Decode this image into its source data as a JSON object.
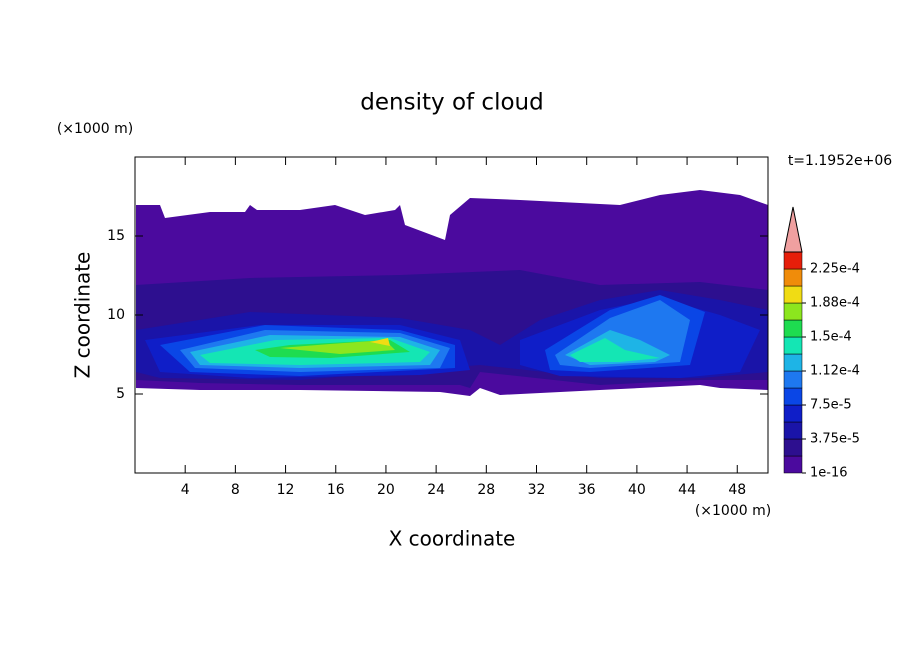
{
  "chart_data": {
    "type": "contour",
    "title": "density of cloud",
    "x_label": "X coordinate",
    "y_label": "Z coordinate",
    "x_unit": "(×1000 m)",
    "y_unit": "(×1000 m)",
    "time_label": "t=1.1952e+06",
    "xlim": [
      0,
      50.45
    ],
    "ylim": [
      0,
      20
    ],
    "xticks": [
      4,
      8,
      12,
      16,
      20,
      24,
      28,
      32,
      36,
      40,
      44,
      48
    ],
    "yticks": [
      5,
      10,
      15
    ],
    "levels": [
      1e-16,
      1.875e-05,
      3.75e-05,
      5.625e-05,
      7.5e-05,
      9.375e-05,
      0.0001125,
      0.00013125,
      0.00015,
      0.00016875,
      0.0001875,
      0.00020625,
      0.000225,
      0.00024375
    ],
    "colors": [
      "#4b0a9e",
      "#2d0f8f",
      "#1a14a8",
      "#0f1ec8",
      "#0a46e6",
      "#1e78f0",
      "#1eb4e6",
      "#14e6b4",
      "#1edc50",
      "#8ce61e",
      "#f0dc14",
      "#f08c0a",
      "#e61e0a"
    ],
    "over_color": "#f0a0a0",
    "colorbar_ticks": [
      {
        "value": 1e-16,
        "label": "1e-16"
      },
      {
        "value": 3.75e-05,
        "label": "3.75e-5"
      },
      {
        "value": 7.5e-05,
        "label": "7.5e-5"
      },
      {
        "value": 0.0001125,
        "label": "1.12e-4"
      },
      {
        "value": 0.00015,
        "label": "1.5e-4"
      },
      {
        "value": 0.0001875,
        "label": "1.88e-4"
      },
      {
        "value": 0.000225,
        "label": "2.25e-4"
      }
    ]
  }
}
